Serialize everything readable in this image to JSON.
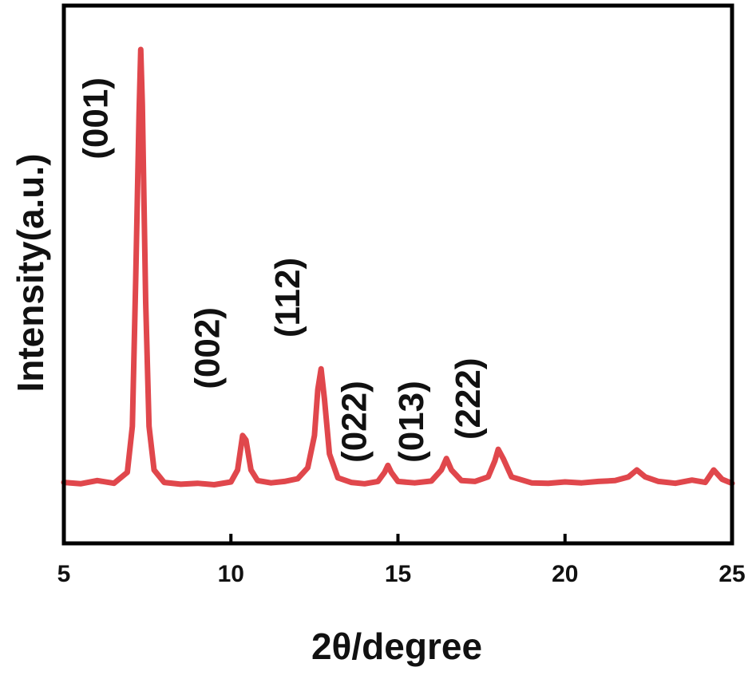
{
  "chart_data": {
    "type": "line",
    "title": "",
    "xlabel": "2θ/degree",
    "ylabel": "Intensity(a.u.)",
    "xlim": [
      5,
      25
    ],
    "ylim": [
      0,
      100
    ],
    "x_ticks": [
      "5",
      "10",
      "15",
      "20",
      "25"
    ],
    "x_tick_values": [
      5,
      10,
      15,
      20,
      25
    ],
    "y_ticks_shown": false,
    "grid": false,
    "legend": "none",
    "series": [
      {
        "color": "#e0474c",
        "x": [
          5.0,
          5.5,
          6.0,
          6.5,
          6.9,
          7.05,
          7.15,
          7.25,
          7.3,
          7.35,
          7.45,
          7.55,
          7.7,
          8.0,
          8.5,
          9.0,
          9.5,
          10.0,
          10.2,
          10.35,
          10.45,
          10.6,
          10.8,
          11.2,
          11.6,
          12.0,
          12.3,
          12.5,
          12.6,
          12.7,
          12.8,
          12.95,
          13.2,
          13.6,
          14.0,
          14.4,
          14.6,
          14.7,
          14.8,
          15.0,
          15.5,
          16.0,
          16.3,
          16.45,
          16.6,
          16.9,
          17.3,
          17.7,
          17.9,
          18.0,
          18.15,
          18.4,
          19.0,
          19.5,
          20.0,
          20.5,
          21.0,
          21.5,
          21.9,
          22.15,
          22.4,
          22.8,
          23.3,
          23.8,
          24.2,
          24.45,
          24.7,
          25.0
        ],
        "y": [
          5.8,
          5.5,
          6.2,
          5.6,
          8.0,
          18.0,
          50.0,
          86.0,
          100.0,
          88.0,
          45.0,
          18.0,
          8.5,
          5.8,
          5.4,
          5.6,
          5.3,
          5.9,
          8.5,
          16.0,
          15.0,
          8.5,
          6.2,
          5.7,
          6.0,
          6.6,
          9.0,
          16.0,
          26.0,
          30.5,
          24.0,
          12.0,
          6.8,
          5.8,
          5.5,
          6.0,
          8.0,
          9.5,
          8.0,
          6.0,
          5.7,
          6.1,
          8.5,
          11.0,
          8.5,
          6.2,
          6.0,
          7.0,
          10.5,
          13.0,
          11.0,
          7.0,
          5.7,
          5.6,
          5.9,
          5.7,
          6.0,
          6.2,
          7.0,
          8.5,
          7.0,
          6.0,
          5.6,
          6.3,
          5.8,
          8.5,
          6.5,
          5.6
        ]
      }
    ],
    "annotations": [
      {
        "text": "(001)",
        "x": 6.3,
        "y": 85
      },
      {
        "text": "(002)",
        "x": 9.65,
        "y": 35
      },
      {
        "text": "(112)",
        "x": 12.05,
        "y": 46
      },
      {
        "text": "(022)",
        "x": 14.05,
        "y": 19
      },
      {
        "text": "(013)",
        "x": 15.75,
        "y": 19
      },
      {
        "text": "(222)",
        "x": 17.45,
        "y": 24
      }
    ]
  }
}
